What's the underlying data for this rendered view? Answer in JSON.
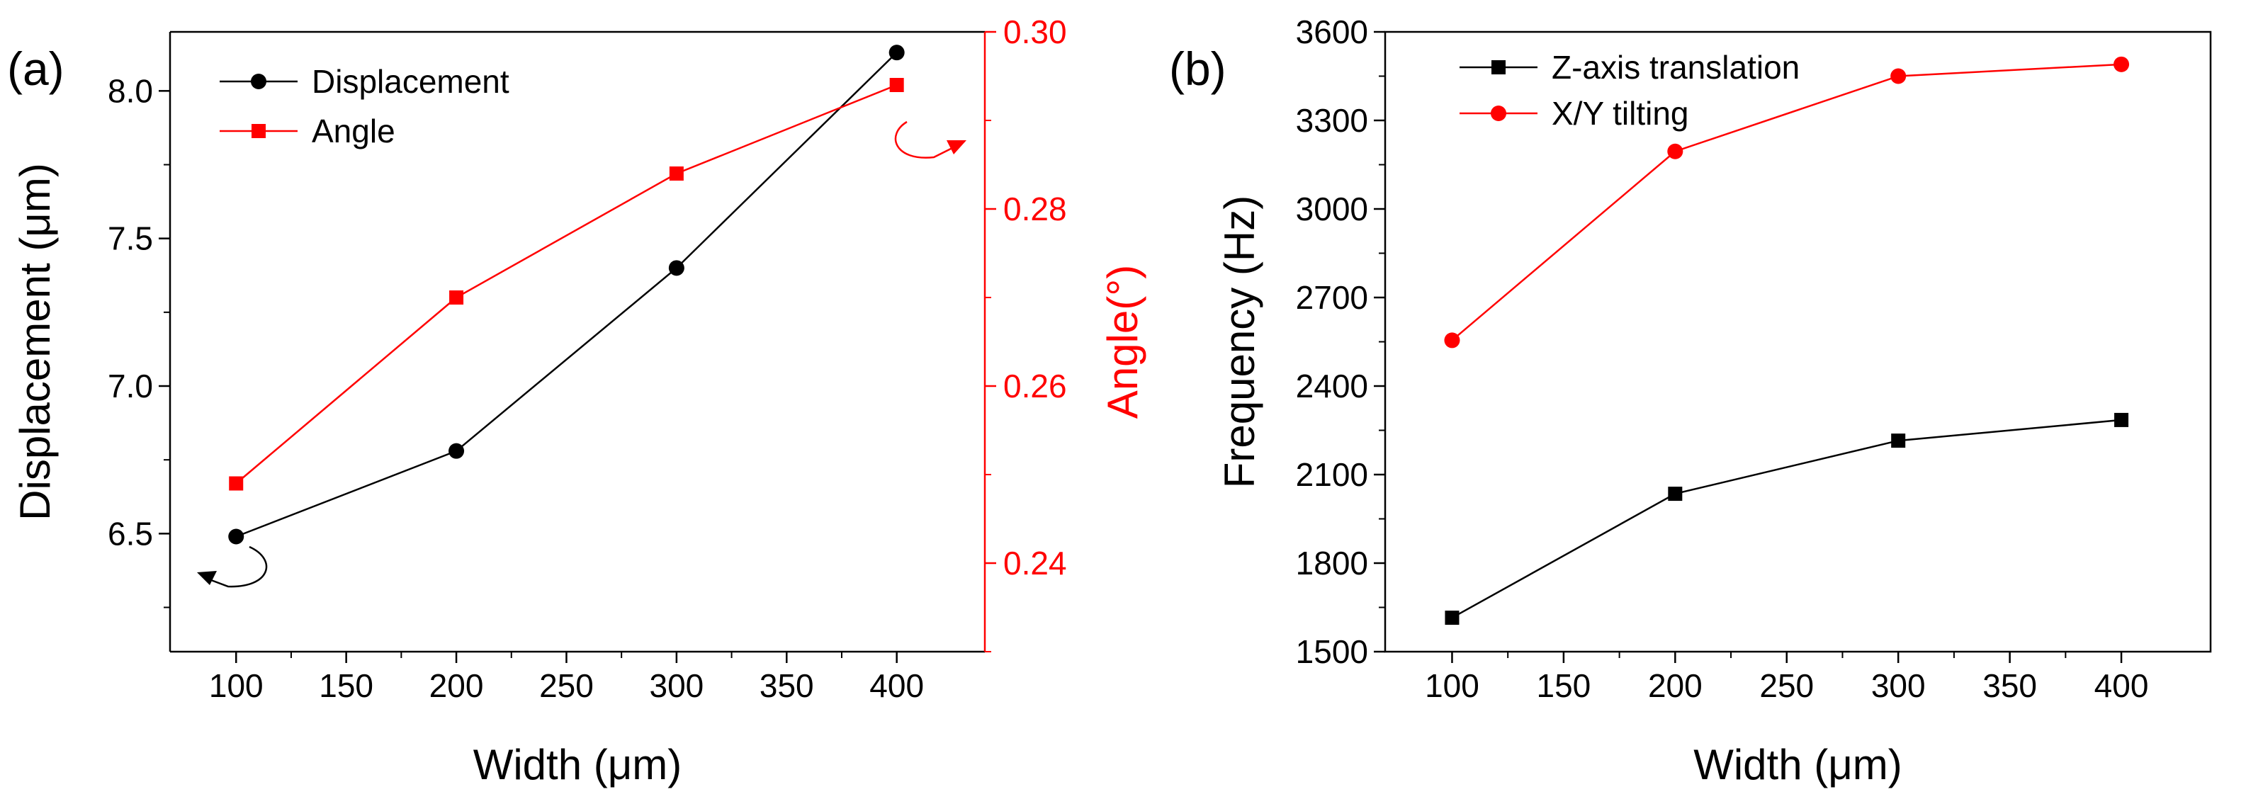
{
  "chart_data": [
    {
      "panel_label": "(a)",
      "type": "line",
      "xlabel": "Width (μm)",
      "ylabel": "Displacement (μm)",
      "y2label": "Angle(°)",
      "xlim": [
        70,
        440
      ],
      "ylim": [
        6.1,
        8.2
      ],
      "y2lim": [
        0.23,
        0.3
      ],
      "xticks": [
        100,
        150,
        200,
        250,
        300,
        350,
        400
      ],
      "yticks": [
        6.5,
        7.0,
        7.5,
        8.0
      ],
      "y2ticks": [
        0.24,
        0.26,
        0.28,
        0.3
      ],
      "xtick_labels": [
        "100",
        "150",
        "200",
        "250",
        "300",
        "350",
        "400"
      ],
      "ytick_labels": [
        "6.5",
        "7.0",
        "7.5",
        "8.0"
      ],
      "y2tick_labels": [
        "0.24",
        "0.26",
        "0.28",
        "0.30"
      ],
      "legend_position": "top-left",
      "series": [
        {
          "name": "Displacement",
          "axis": "left",
          "color": "#000000",
          "marker": "circle",
          "x": [
            100,
            200,
            300,
            400
          ],
          "values": [
            6.49,
            6.78,
            7.4,
            8.13
          ]
        },
        {
          "name": "Angle",
          "axis": "right",
          "color": "#ff0000",
          "marker": "square",
          "x": [
            100,
            200,
            300,
            400
          ],
          "values": [
            0.249,
            0.27,
            0.284,
            0.294
          ]
        }
      ]
    },
    {
      "panel_label": "(b)",
      "type": "line",
      "xlabel": "Width (μm)",
      "ylabel": "Frequency (Hz)",
      "xlim": [
        70,
        440
      ],
      "ylim": [
        1500,
        3600
      ],
      "xticks": [
        100,
        150,
        200,
        250,
        300,
        350,
        400
      ],
      "yticks": [
        1500,
        1800,
        2100,
        2400,
        2700,
        3000,
        3300,
        3600
      ],
      "xtick_labels": [
        "100",
        "150",
        "200",
        "250",
        "300",
        "350",
        "400"
      ],
      "ytick_labels": [
        "1500",
        "1800",
        "2100",
        "2400",
        "2700",
        "3000",
        "3300",
        "3600"
      ],
      "legend_position": "top-left",
      "series": [
        {
          "name": "Z-axis translation",
          "color": "#000000",
          "marker": "square",
          "x": [
            100,
            200,
            300,
            400
          ],
          "values": [
            1615,
            2035,
            2215,
            2285
          ]
        },
        {
          "name": "X/Y tilting",
          "color": "#ff0000",
          "marker": "circle",
          "x": [
            100,
            200,
            300,
            400
          ],
          "values": [
            2555,
            3195,
            3450,
            3490
          ]
        }
      ]
    }
  ]
}
